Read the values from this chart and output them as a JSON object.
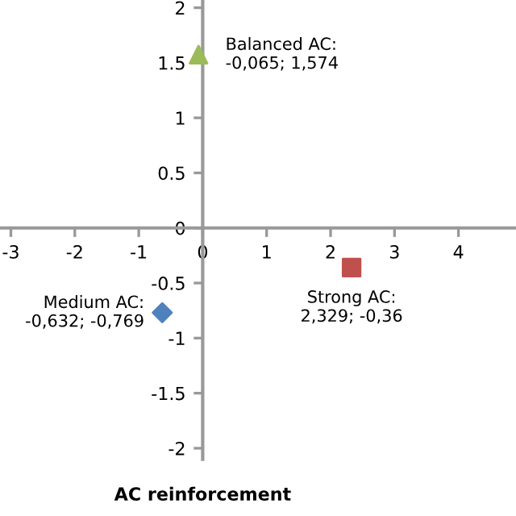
{
  "chart_data": {
    "type": "scatter",
    "xlabel": "AC reinforcement",
    "xlim": [
      -3.17,
      4.9
    ],
    "ylim": [
      -2.1,
      2.07
    ],
    "xticks": [
      -3,
      -2,
      -1,
      0,
      1,
      2,
      3,
      4
    ],
    "yticks": [
      -2,
      -1.5,
      -1,
      -0.5,
      0,
      0.5,
      1,
      1.5,
      2
    ],
    "grid": false,
    "legend": false,
    "series": [
      {
        "color": "#9bbb59",
        "marker": "triangle",
        "x": [
          -0.065
        ],
        "values": [
          1.574
        ]
      },
      {
        "color": "#c0504d",
        "marker": "square",
        "x": [
          2.329
        ],
        "values": [
          -0.36
        ]
      },
      {
        "color": "#4f81bd",
        "marker": "diamond",
        "x": [
          -0.632
        ],
        "values": [
          -0.769
        ]
      }
    ],
    "annotations": [
      {
        "text": "Balanced AC:\n-0,065; 1,574",
        "x": -0.065,
        "y": 1.574
      },
      {
        "text": "Strong AC:\n2,329; -0,36",
        "x": 2.329,
        "y": -0.36
      },
      {
        "text": "Medium AC:\n-0,632; -0,769",
        "x": -0.632,
        "y": -0.769
      }
    ]
  }
}
